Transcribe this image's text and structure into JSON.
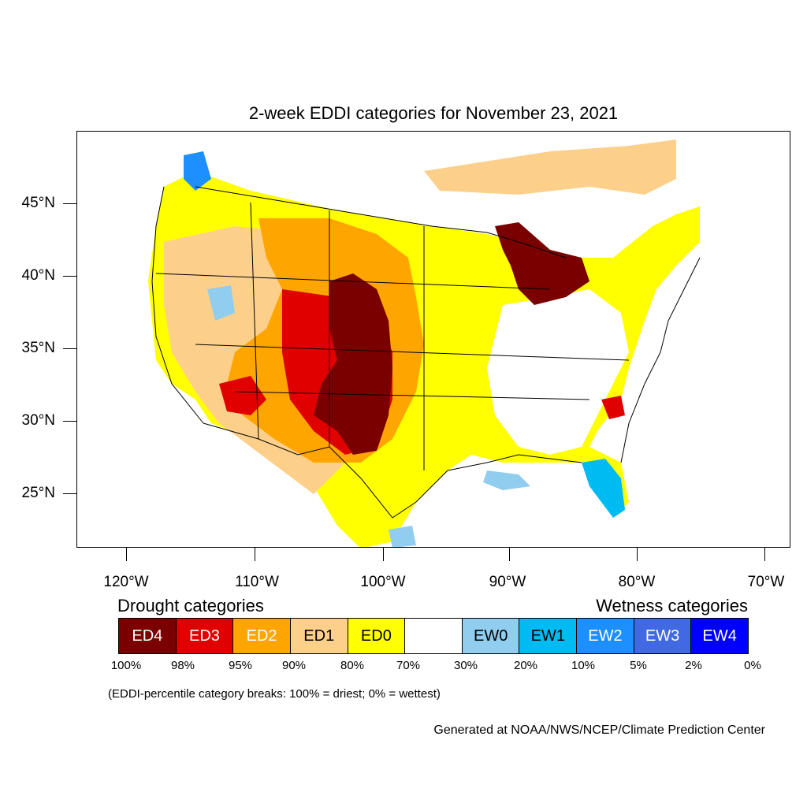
{
  "title": "2-week EDDI categories for November 23, 2021",
  "map": {
    "extent_lon": [
      -124,
      -68
    ],
    "extent_lat": [
      21,
      50
    ],
    "y_axis_labels": [
      "45°N",
      "40°N",
      "35°N",
      "30°N",
      "25°N"
    ],
    "x_axis_labels": [
      "120°W",
      "110°W",
      "100°W",
      "90°W",
      "80°W",
      "70°W"
    ],
    "regions_shown": [
      {
        "category": "ED4",
        "area": "Colorado, Kansas, Oklahoma and Texas panhandle core"
      },
      {
        "category": "ED4",
        "area": "Upper Michigan and Lake Michigan / Lake Huron shores"
      },
      {
        "category": "ED3",
        "area": "Arizona, New Mexico, southern Texas edges, Carolinas spots"
      },
      {
        "category": "ED2",
        "area": "Southwest, Great Plains, Montana, Wyoming"
      },
      {
        "category": "ED1",
        "area": "Great Basin, northern Rockies, New England"
      },
      {
        "category": "ED0",
        "area": "Midwest, Texas, Ohio Valley, Maine"
      },
      {
        "category": "EW0",
        "area": "Gulf coast of Louisiana, northeast Florida, scattered West"
      },
      {
        "category": "EW1",
        "area": "Florida peninsula, Washington coast"
      },
      {
        "category": "EW2",
        "area": "Washington Cascades, Florida spots"
      }
    ]
  },
  "legend": {
    "drought_title": "Drought categories",
    "wetness_title": "Wetness categories",
    "categories": [
      {
        "label": "ED4",
        "color": "#7a0000",
        "text_color": "#ffffff"
      },
      {
        "label": "ED3",
        "color": "#e00000",
        "text_color": "#ffffff"
      },
      {
        "label": "ED2",
        "color": "#ffa500",
        "text_color": "#ffffff"
      },
      {
        "label": "ED1",
        "color": "#fcd08b",
        "text_color": "#000000"
      },
      {
        "label": "ED0",
        "color": "#ffff00",
        "text_color": "#000000"
      },
      {
        "label": "",
        "color": "#ffffff",
        "text_color": "#000000"
      },
      {
        "label": "EW0",
        "color": "#90cdee",
        "text_color": "#000000"
      },
      {
        "label": "EW1",
        "color": "#00baf2",
        "text_color": "#000000"
      },
      {
        "label": "EW2",
        "color": "#1e8fff",
        "text_color": "#ffffff"
      },
      {
        "label": "EW3",
        "color": "#4169e1",
        "text_color": "#ffffff"
      },
      {
        "label": "EW4",
        "color": "#0000ff",
        "text_color": "#ffffff"
      }
    ],
    "percent_breaks": [
      "100%",
      "98%",
      "95%",
      "90%",
      "80%",
      "70%",
      "30%",
      "20%",
      "10%",
      "5%",
      "2%",
      "0%"
    ]
  },
  "note": "(EDDI-percentile category breaks: 100% = driest; 0% = wettest)",
  "credit": "Generated at NOAA/NWS/NCEP/Climate Prediction Center"
}
